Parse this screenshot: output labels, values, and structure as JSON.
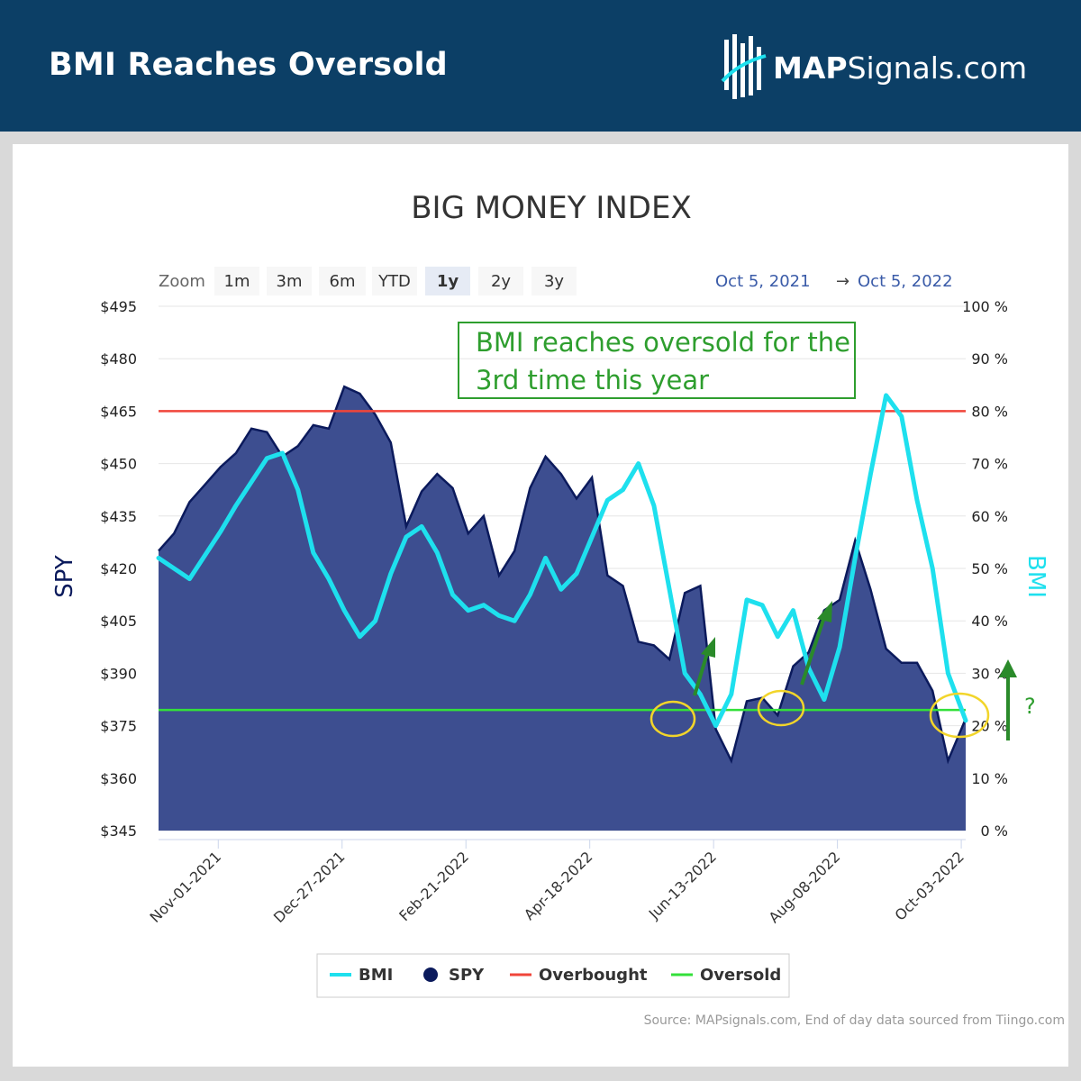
{
  "header": {
    "title": "BMI Reaches Oversold",
    "logo_bold": "MAP",
    "logo_rest": "Signals.com"
  },
  "chart": {
    "title": "BIG MONEY INDEX",
    "zoom_label": "Zoom",
    "zoom_buttons": [
      "1m",
      "3m",
      "6m",
      "YTD",
      "1y",
      "2y",
      "3y"
    ],
    "zoom_selected": "1y",
    "range_from": "Oct 5, 2021",
    "range_arrow": "→",
    "range_to": "Oct 5, 2022",
    "annotation_line1": "BMI reaches oversold for the",
    "annotation_line2": "3rd time this year",
    "question_mark": "?",
    "source": "Source: MAPsignals.com, End of day data sourced from Tiingo.com"
  },
  "colors": {
    "banner": "#0c3f66",
    "spy_fill": "#3d4e90",
    "spy_line": "#0b1a5c",
    "bmi": "#1ee0ee",
    "overbought": "#f0453a",
    "oversold": "#33e03a",
    "annotation": "#2e9e2e",
    "circle": "#f2d52a",
    "arrow": "#2a8a2a"
  },
  "chart_data": {
    "type": "area",
    "title": "BIG MONEY INDEX",
    "xlabel": "",
    "ylabel_left": "SPY",
    "ylabel_right": "BMI",
    "x_range": [
      "2021-10-05",
      "2022-10-05"
    ],
    "x_ticks": [
      "Nov-01-2021",
      "Dec-27-2021",
      "Feb-21-2022",
      "Apr-18-2022",
      "Jun-13-2022",
      "Aug-08-2022",
      "Oct-03-2022"
    ],
    "y_left_ticks": [
      "$495",
      "$480",
      "$465",
      "$450",
      "$435",
      "$420",
      "$405",
      "$390",
      "$375",
      "$360",
      "$345"
    ],
    "y_left_range": [
      345,
      495
    ],
    "y_right_ticks": [
      "100 %",
      "90 %",
      "80 %",
      "70 %",
      "60 %",
      "50 %",
      "40 %",
      "30 %",
      "20 %",
      "10 %",
      "0 %"
    ],
    "y_right_range": [
      0,
      100
    ],
    "grid": true,
    "legend_position": "bottom",
    "series": [
      {
        "name": "SPY",
        "type": "area",
        "axis": "left",
        "points": [
          [
            "2021-10-05",
            425
          ],
          [
            "2021-10-12",
            430
          ],
          [
            "2021-10-19",
            439
          ],
          [
            "2021-10-26",
            444
          ],
          [
            "2021-11-02",
            449
          ],
          [
            "2021-11-09",
            453
          ],
          [
            "2021-11-16",
            460
          ],
          [
            "2021-11-23",
            459
          ],
          [
            "2021-11-30",
            452
          ],
          [
            "2021-12-07",
            455
          ],
          [
            "2021-12-14",
            461
          ],
          [
            "2021-12-21",
            460
          ],
          [
            "2021-12-28",
            472
          ],
          [
            "2022-01-04",
            470
          ],
          [
            "2022-01-11",
            464
          ],
          [
            "2022-01-18",
            456
          ],
          [
            "2022-01-25",
            432
          ],
          [
            "2022-02-01",
            442
          ],
          [
            "2022-02-08",
            447
          ],
          [
            "2022-02-15",
            443
          ],
          [
            "2022-02-22",
            430
          ],
          [
            "2022-03-01",
            435
          ],
          [
            "2022-03-08",
            418
          ],
          [
            "2022-03-15",
            425
          ],
          [
            "2022-03-22",
            443
          ],
          [
            "2022-03-29",
            452
          ],
          [
            "2022-04-05",
            447
          ],
          [
            "2022-04-12",
            440
          ],
          [
            "2022-04-19",
            446
          ],
          [
            "2022-04-26",
            418
          ],
          [
            "2022-05-03",
            415
          ],
          [
            "2022-05-10",
            399
          ],
          [
            "2022-05-17",
            398
          ],
          [
            "2022-05-24",
            394
          ],
          [
            "2022-05-31",
            413
          ],
          [
            "2022-06-07",
            415
          ],
          [
            "2022-06-14",
            374
          ],
          [
            "2022-06-21",
            365
          ],
          [
            "2022-06-28",
            382
          ],
          [
            "2022-07-05",
            383
          ],
          [
            "2022-07-12",
            378
          ],
          [
            "2022-07-19",
            392
          ],
          [
            "2022-07-26",
            396
          ],
          [
            "2022-08-02",
            408
          ],
          [
            "2022-08-09",
            411
          ],
          [
            "2022-08-16",
            428
          ],
          [
            "2022-08-23",
            414
          ],
          [
            "2022-08-30",
            397
          ],
          [
            "2022-09-06",
            393
          ],
          [
            "2022-09-13",
            393
          ],
          [
            "2022-09-20",
            385
          ],
          [
            "2022-09-27",
            365
          ],
          [
            "2022-10-05",
            377
          ]
        ]
      },
      {
        "name": "BMI",
        "type": "line",
        "axis": "right",
        "points": [
          [
            "2021-10-05",
            52
          ],
          [
            "2021-10-19",
            48
          ],
          [
            "2021-11-02",
            57
          ],
          [
            "2021-11-09",
            62
          ],
          [
            "2021-11-23",
            71
          ],
          [
            "2021-11-30",
            72
          ],
          [
            "2021-12-07",
            65
          ],
          [
            "2021-12-14",
            53
          ],
          [
            "2021-12-21",
            48
          ],
          [
            "2021-12-28",
            42
          ],
          [
            "2022-01-04",
            37
          ],
          [
            "2022-01-11",
            40
          ],
          [
            "2022-01-18",
            49
          ],
          [
            "2022-01-25",
            56
          ],
          [
            "2022-02-01",
            58
          ],
          [
            "2022-02-08",
            53
          ],
          [
            "2022-02-15",
            45
          ],
          [
            "2022-02-22",
            42
          ],
          [
            "2022-03-01",
            43
          ],
          [
            "2022-03-08",
            41
          ],
          [
            "2022-03-15",
            40
          ],
          [
            "2022-03-22",
            45
          ],
          [
            "2022-03-29",
            52
          ],
          [
            "2022-04-05",
            46
          ],
          [
            "2022-04-12",
            49
          ],
          [
            "2022-04-19",
            56
          ],
          [
            "2022-04-26",
            63
          ],
          [
            "2022-05-03",
            65
          ],
          [
            "2022-05-10",
            70
          ],
          [
            "2022-05-17",
            62
          ],
          [
            "2022-05-24",
            46
          ],
          [
            "2022-05-31",
            30
          ],
          [
            "2022-06-07",
            26
          ],
          [
            "2022-06-14",
            20
          ],
          [
            "2022-06-21",
            26
          ],
          [
            "2022-06-28",
            44
          ],
          [
            "2022-07-05",
            43
          ],
          [
            "2022-07-12",
            37
          ],
          [
            "2022-07-19",
            42
          ],
          [
            "2022-07-26",
            31
          ],
          [
            "2022-08-02",
            25
          ],
          [
            "2022-08-09",
            35
          ],
          [
            "2022-08-16",
            52
          ],
          [
            "2022-08-23",
            68
          ],
          [
            "2022-08-30",
            83
          ],
          [
            "2022-09-06",
            79
          ],
          [
            "2022-09-13",
            63
          ],
          [
            "2022-09-20",
            50
          ],
          [
            "2022-09-27",
            30
          ],
          [
            "2022-10-05",
            21
          ]
        ]
      },
      {
        "name": "Overbought",
        "type": "line",
        "axis": "right",
        "value": 80
      },
      {
        "name": "Oversold",
        "type": "line",
        "axis": "right",
        "value": 23
      }
    ],
    "legend": [
      "BMI",
      "SPY",
      "Overbought",
      "Oversold"
    ]
  }
}
